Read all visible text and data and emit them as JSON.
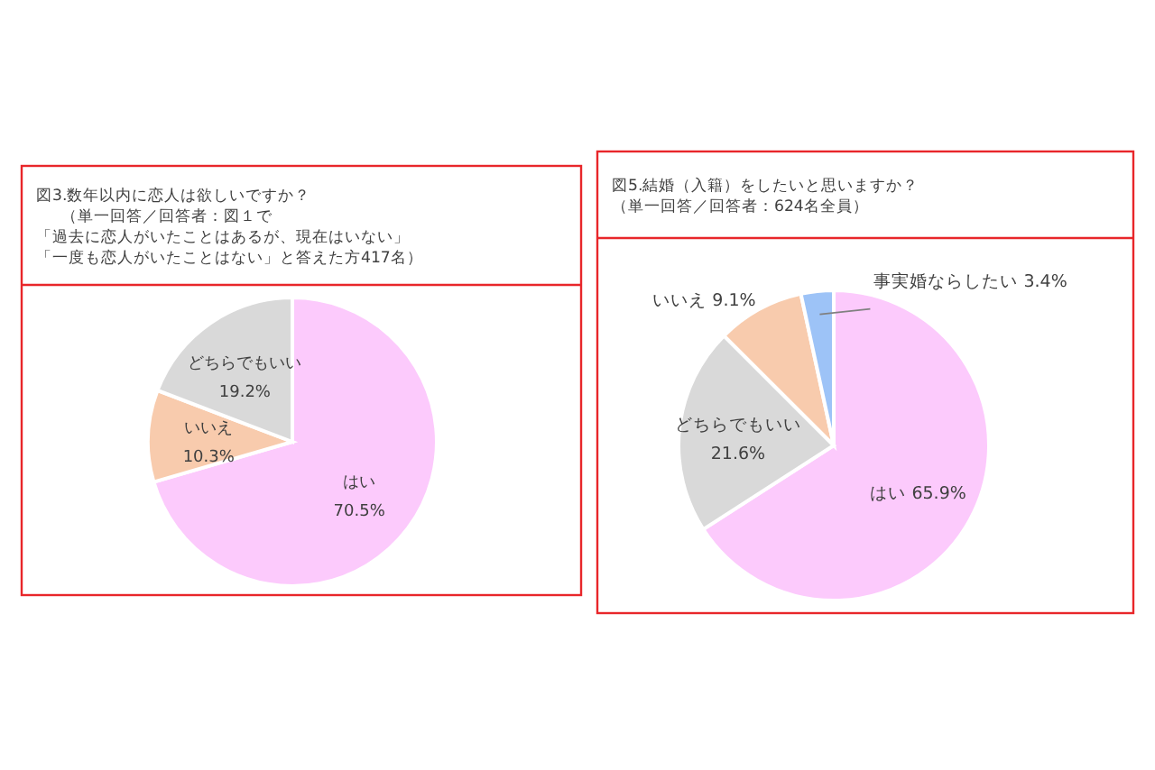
{
  "chart_data": [
    {
      "type": "pie",
      "title": "図3.数年以内に恋人は欲しいですか？",
      "subtitle": "（単一回答／回答者：図１で",
      "annotations": [
        "「過去に恋人がいたことはあるが、現在はいない」",
        "「一度も恋人がいたことはない」と答えた方417名）"
      ],
      "categories": [
        "はい",
        "いいえ",
        "どちらでもいい"
      ],
      "values": [
        70.5,
        10.3,
        19.2
      ],
      "value_labels": [
        "70.5%",
        "10.3%",
        "19.2%"
      ],
      "colors": [
        "#fccafc",
        "#f8cbad",
        "#d9d9d9"
      ]
    },
    {
      "type": "pie",
      "title": "図5.結婚（入籍）をしたいと思いますか？",
      "subtitle": "（単一回答／回答者：624名全員）",
      "categories": [
        "はい",
        "どちらでもいい",
        "いいえ",
        "事実婚ならしたい"
      ],
      "values": [
        65.9,
        21.6,
        9.1,
        3.4
      ],
      "value_labels": [
        "65.9%",
        "21.6%",
        "9.1%",
        "3.4%"
      ],
      "colors": [
        "#fccafc",
        "#d9d9d9",
        "#f8cbad",
        "#9dc3f7"
      ]
    }
  ]
}
